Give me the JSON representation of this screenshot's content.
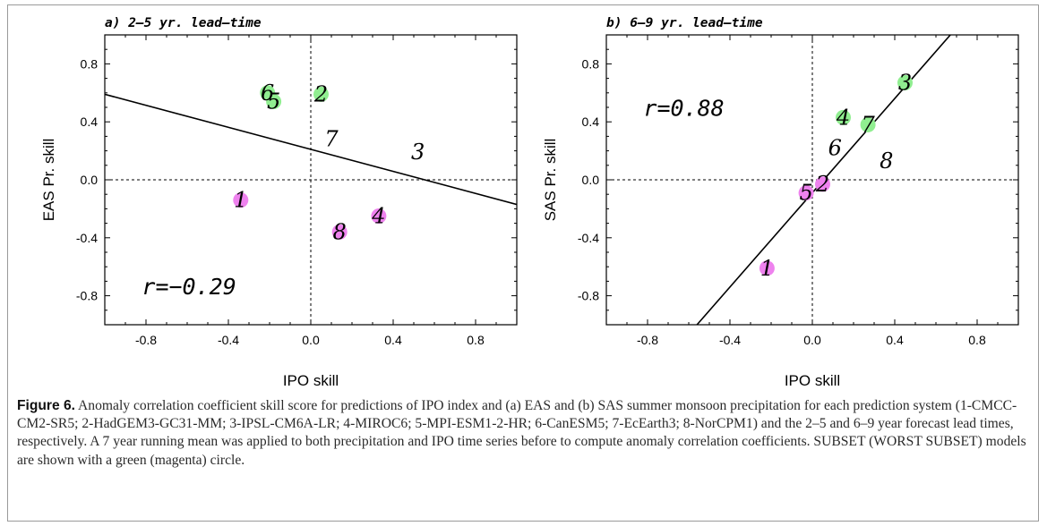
{
  "chart_data": [
    {
      "type": "scatter",
      "title": "a) 2–5 yr. lead–time",
      "xlabel": "IPO skill",
      "ylabel": "EAS Pr. skill",
      "xlim": [
        -1.0,
        1.0
      ],
      "ylim": [
        -1.0,
        1.0
      ],
      "xticks": [
        -0.8,
        -0.4,
        0.0,
        0.4,
        0.8
      ],
      "yticks": [
        -0.8,
        -0.4,
        0.0,
        0.4,
        0.8
      ],
      "tick_labels": [
        "-0.8",
        "-0.4",
        "0.0",
        "0.4",
        "0.8"
      ],
      "zero_lines": true,
      "annotation": "r=−0.29",
      "regression_line": [
        [
          -1.0,
          0.59
        ],
        [
          1.0,
          -0.17
        ]
      ],
      "points": [
        {
          "label": "1",
          "x": -0.34,
          "y": -0.14,
          "group": "worst"
        },
        {
          "label": "2",
          "x": 0.05,
          "y": 0.59,
          "group": "subset"
        },
        {
          "label": "3",
          "x": 0.52,
          "y": 0.19,
          "group": "none"
        },
        {
          "label": "4",
          "x": 0.33,
          "y": -0.25,
          "group": "worst"
        },
        {
          "label": "5",
          "x": -0.18,
          "y": 0.54,
          "group": "subset"
        },
        {
          "label": "6",
          "x": -0.21,
          "y": 0.6,
          "group": "subset"
        },
        {
          "label": "7",
          "x": 0.1,
          "y": 0.28,
          "group": "none"
        },
        {
          "label": "8",
          "x": 0.14,
          "y": -0.36,
          "group": "worst"
        }
      ]
    },
    {
      "type": "scatter",
      "title": "b) 6–9 yr. lead–time",
      "xlabel": "IPO skill",
      "ylabel": "SAS Pr. skill",
      "xlim": [
        -1.0,
        1.0
      ],
      "ylim": [
        -1.0,
        1.0
      ],
      "xticks": [
        -0.8,
        -0.4,
        0.0,
        0.4,
        0.8
      ],
      "yticks": [
        -0.8,
        -0.4,
        0.0,
        0.4,
        0.8
      ],
      "tick_labels": [
        "-0.8",
        "-0.4",
        "0.0",
        "0.4",
        "0.8"
      ],
      "zero_lines": true,
      "annotation": "r=0.88",
      "regression_line": [
        [
          -0.56,
          -1.0
        ],
        [
          0.67,
          1.0
        ]
      ],
      "points": [
        {
          "label": "1",
          "x": -0.22,
          "y": -0.61,
          "group": "worst"
        },
        {
          "label": "2",
          "x": 0.05,
          "y": -0.03,
          "group": "worst"
        },
        {
          "label": "3",
          "x": 0.45,
          "y": 0.67,
          "group": "subset"
        },
        {
          "label": "4",
          "x": 0.15,
          "y": 0.43,
          "group": "subset"
        },
        {
          "label": "5",
          "x": -0.03,
          "y": -0.09,
          "group": "worst"
        },
        {
          "label": "6",
          "x": 0.11,
          "y": 0.22,
          "group": "none"
        },
        {
          "label": "7",
          "x": 0.27,
          "y": 0.38,
          "group": "subset"
        },
        {
          "label": "8",
          "x": 0.36,
          "y": 0.13,
          "group": "none"
        }
      ]
    }
  ],
  "colors": {
    "subset": "#90ee90",
    "worst": "#ee82ee",
    "axis": "#000000",
    "border": "#9a9a9a"
  },
  "caption": {
    "label": "Figure 6.",
    "text": "Anomaly correlation coefficient skill score for predictions of IPO index and (a) EAS and (b) SAS summer monsoon precipitation for each prediction system (1-CMCC-CM2-SR5; 2-HadGEM3-GC31-MM; 3-IPSL-CM6A-LR; 4-MIROC6; 5-MPI-ESM1-2-HR; 6-CanESM5; 7-EcEarth3; 8-NorCPM1) and the 2–5 and 6–9 year forecast lead times, respectively. A 7 year running mean was applied to both precipitation and IPO time series before to compute anomaly correlation coefficients. SUBSET (WORST SUBSET) models are shown with a green (magenta) circle."
  }
}
